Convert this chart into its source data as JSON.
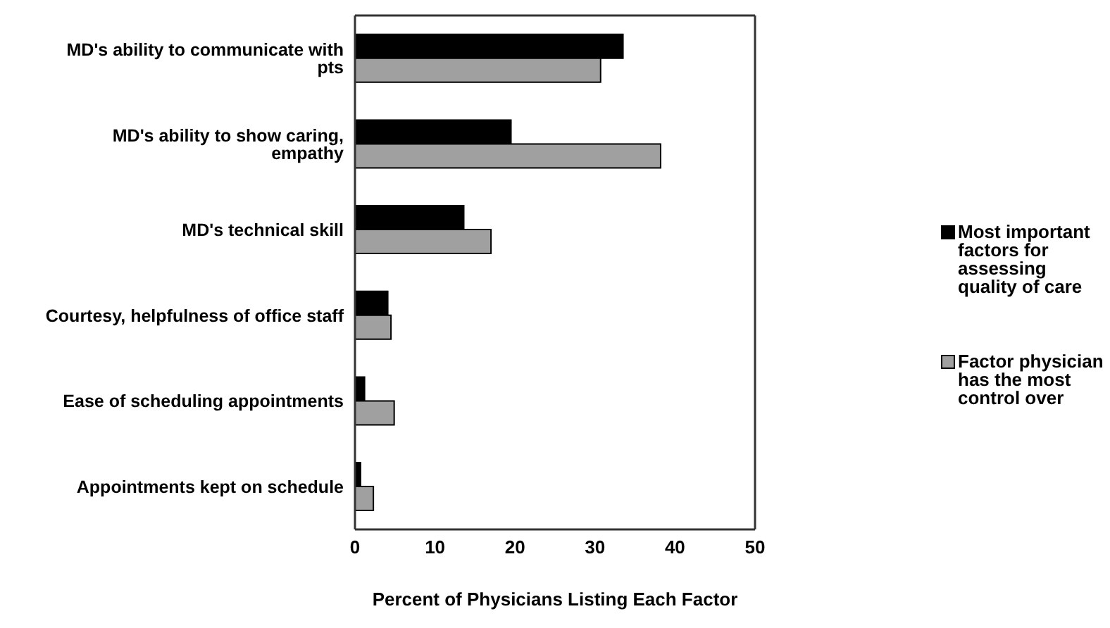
{
  "chart_data": {
    "type": "bar",
    "orientation": "horizontal",
    "xlabel": "Percent of Physicians Listing Each Factor",
    "categories": [
      "MD's ability to communicate with pts",
      "MD's ability to show caring, empathy",
      "MD's technical skill",
      "Courtesy, helpfulness of office staff",
      "Ease of scheduling appointments",
      "Appointments kept on schedule"
    ],
    "series": [
      {
        "name": "Most important factors for assessing quality of care",
        "color": "#000000",
        "values": [
          33.5,
          19.5,
          13.6,
          4.1,
          1.2,
          0.7
        ]
      },
      {
        "name": "Factor physician has the most control over",
        "color": "#a0a0a0",
        "values": [
          30.7,
          38.2,
          17.0,
          4.5,
          4.9,
          2.3
        ]
      }
    ],
    "xlim": [
      0,
      50
    ],
    "xticks": [
      0,
      10,
      20,
      30,
      40,
      50
    ],
    "grid": false,
    "legend": "right"
  }
}
